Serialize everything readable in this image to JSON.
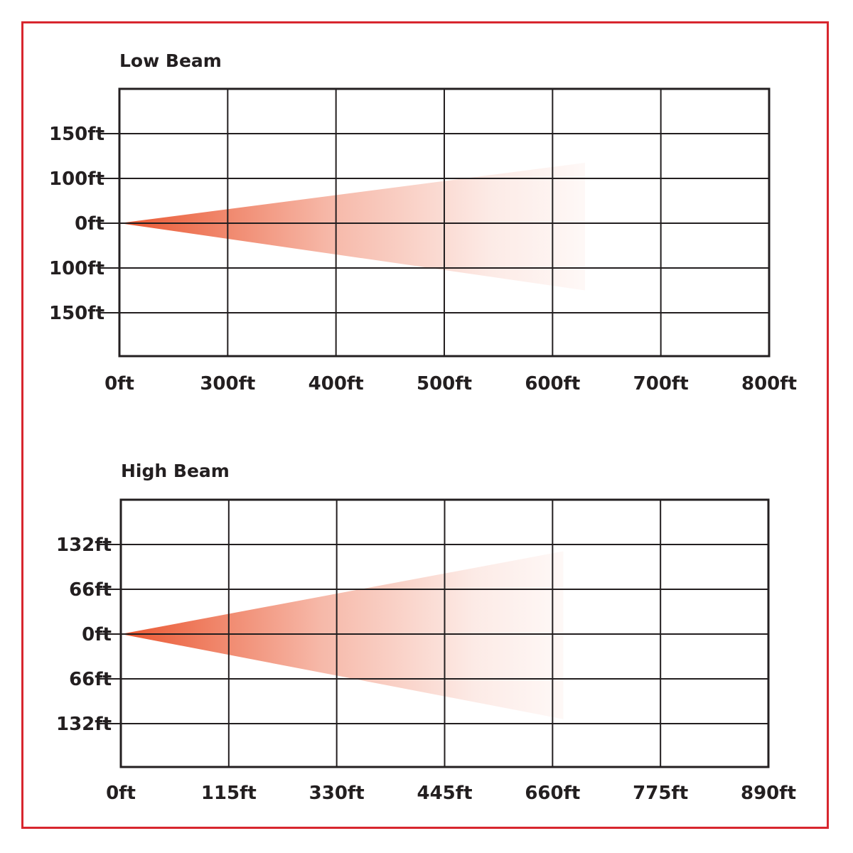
{
  "colors": {
    "frame": "#d8262e",
    "grid": "#231f20",
    "beam": "#ea5630",
    "text": "#231f20"
  },
  "chart_data": [
    {
      "type": "area",
      "title": "Low Beam",
      "x_tick_labels": [
        "0ft",
        "300ft",
        "400ft",
        "500ft",
        "600ft",
        "700ft",
        "800ft"
      ],
      "y_tick_labels": [
        "150ft",
        "100ft",
        "0ft",
        "100ft",
        "150ft"
      ],
      "grid": true,
      "beam": {
        "origin_tick": 0,
        "end_tick": 4.3,
        "spread_top_ticks": 1.35,
        "spread_bottom_ticks": -1.5,
        "apex_at_y_tick": 2,
        "opacity_fade": true
      }
    },
    {
      "type": "area",
      "title": "High Beam",
      "x_tick_labels": [
        "0ft",
        "115ft",
        "330ft",
        "445ft",
        "660ft",
        "775ft",
        "890ft"
      ],
      "y_tick_labels": [
        "132ft",
        "66ft",
        "0ft",
        "66ft",
        "132ft"
      ],
      "grid": true,
      "beam": {
        "origin_tick": 0,
        "end_tick": 4.1,
        "spread_top_ticks": 1.85,
        "spread_bottom_ticks": -1.9,
        "apex_at_y_tick": 2,
        "opacity_fade": true
      }
    }
  ]
}
